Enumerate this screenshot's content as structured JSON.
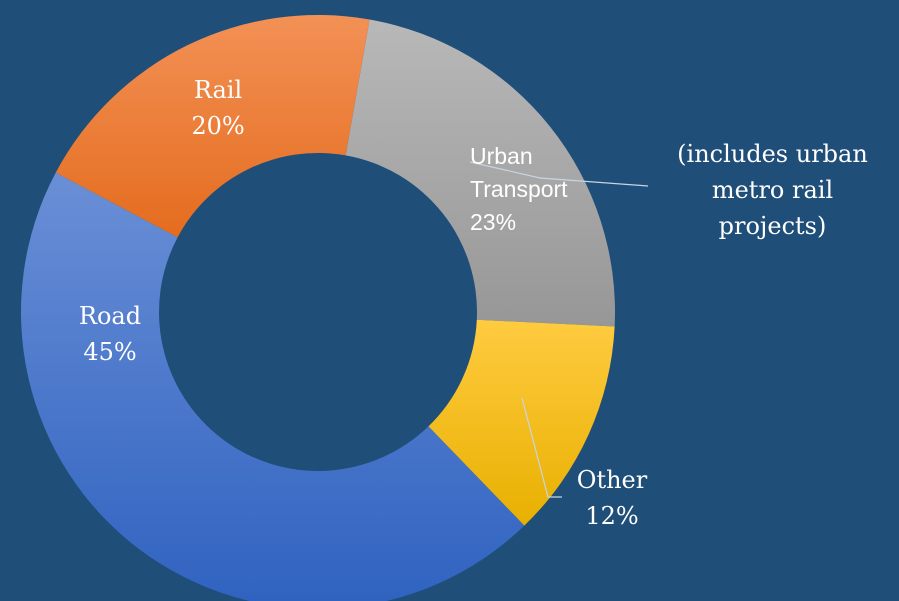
{
  "chart_data": {
    "type": "donut",
    "categories": [
      "Urban Transport",
      "Other",
      "Road",
      "Rail"
    ],
    "values": [
      23,
      12,
      45,
      20
    ],
    "value_labels": [
      "23%",
      "12%",
      "45%",
      "20%"
    ],
    "colors": [
      "#a5a5a5",
      "#ffc000",
      "#4a72c9",
      "#f07c2a"
    ],
    "annotation": "(includes urban metro rail projects)"
  }
}
